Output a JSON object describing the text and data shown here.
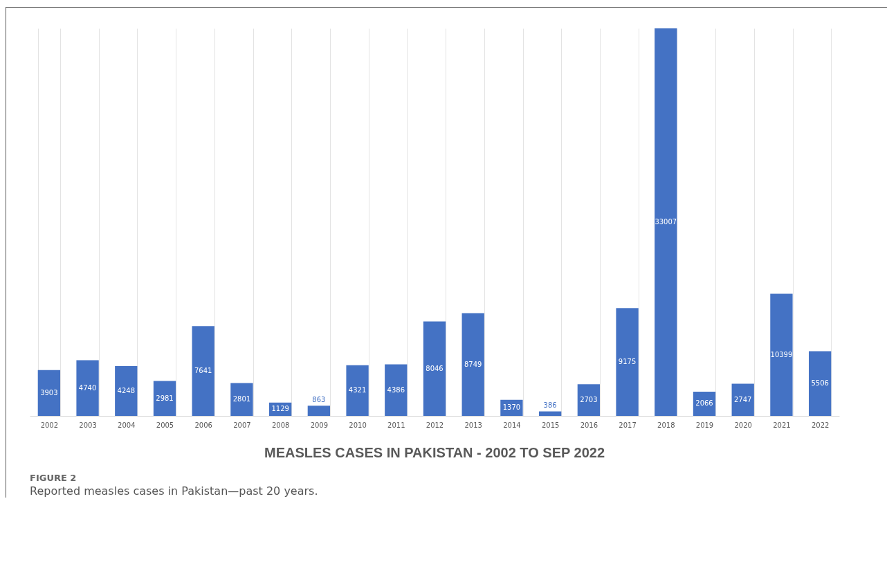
{
  "chart_data": {
    "type": "bar",
    "title": "MEASLES CASES IN PAKISTAN - 2002 TO SEP 2022",
    "categories": [
      "2002",
      "2003",
      "2004",
      "2005",
      "2006",
      "2007",
      "2008",
      "2009",
      "2010",
      "2011",
      "2012",
      "2013",
      "2014",
      "2015",
      "2016",
      "2017",
      "2018",
      "2019",
      "2020",
      "2021",
      "2022"
    ],
    "values": [
      3903,
      4740,
      4248,
      2981,
      7641,
      2801,
      1129,
      863,
      4321,
      4386,
      8046,
      8749,
      1370,
      386,
      2703,
      9175,
      33007,
      2066,
      2747,
      10399,
      5506
    ],
    "color": "#4472c4",
    "data_labels": true,
    "grid": "x",
    "annotations": [
      "FIGURE 2",
      "Reported measles cases in Pakistan—past 20 years."
    ]
  }
}
